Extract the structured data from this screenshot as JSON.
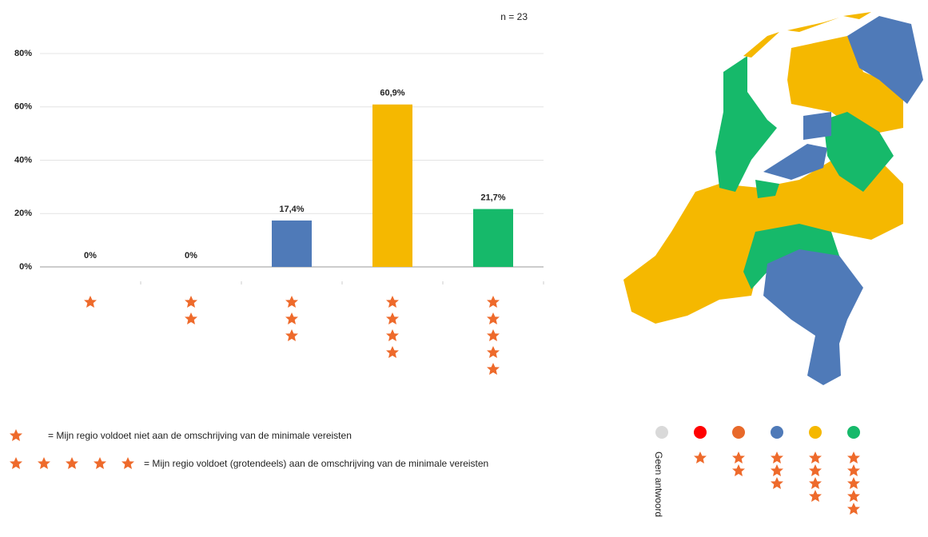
{
  "chart_data": {
    "type": "bar",
    "annotation": "n = 23",
    "categories": [
      null,
      null,
      null,
      null,
      null
    ],
    "values": [
      0,
      0,
      17.4,
      60.9,
      21.7
    ],
    "value_labels": [
      "0%",
      "0%",
      "17,4%",
      "60,9%",
      "21,7%"
    ],
    "colors": [
      "#4f7ab8",
      "#4f7ab8",
      "#4f7ab8",
      "#f5b800",
      "#16b96a"
    ],
    "ylim": [
      0,
      80
    ],
    "yticks": [
      {
        "value": 0,
        "label": "0%"
      },
      {
        "value": 20,
        "label": "20%"
      },
      {
        "value": 40,
        "label": "40%"
      },
      {
        "value": 60,
        "label": "60%"
      },
      {
        "value": 80,
        "label": "80%"
      }
    ],
    "grid": true
  },
  "legend": {
    "low": "= Mijn  regio voldoet niet aan de omschrijving van de minimale  vereisten",
    "high": "= Mijn  regio voldoet (grotendeels) aan de omschrijving van de minimale  vereisten"
  },
  "map_legend": {
    "no_answer": "Geen antwoord",
    "colors": [
      "#d9d9d9",
      "#ff0000",
      "#e8692a",
      "#4f7ab8",
      "#f5b800",
      "#16b96a"
    ]
  }
}
